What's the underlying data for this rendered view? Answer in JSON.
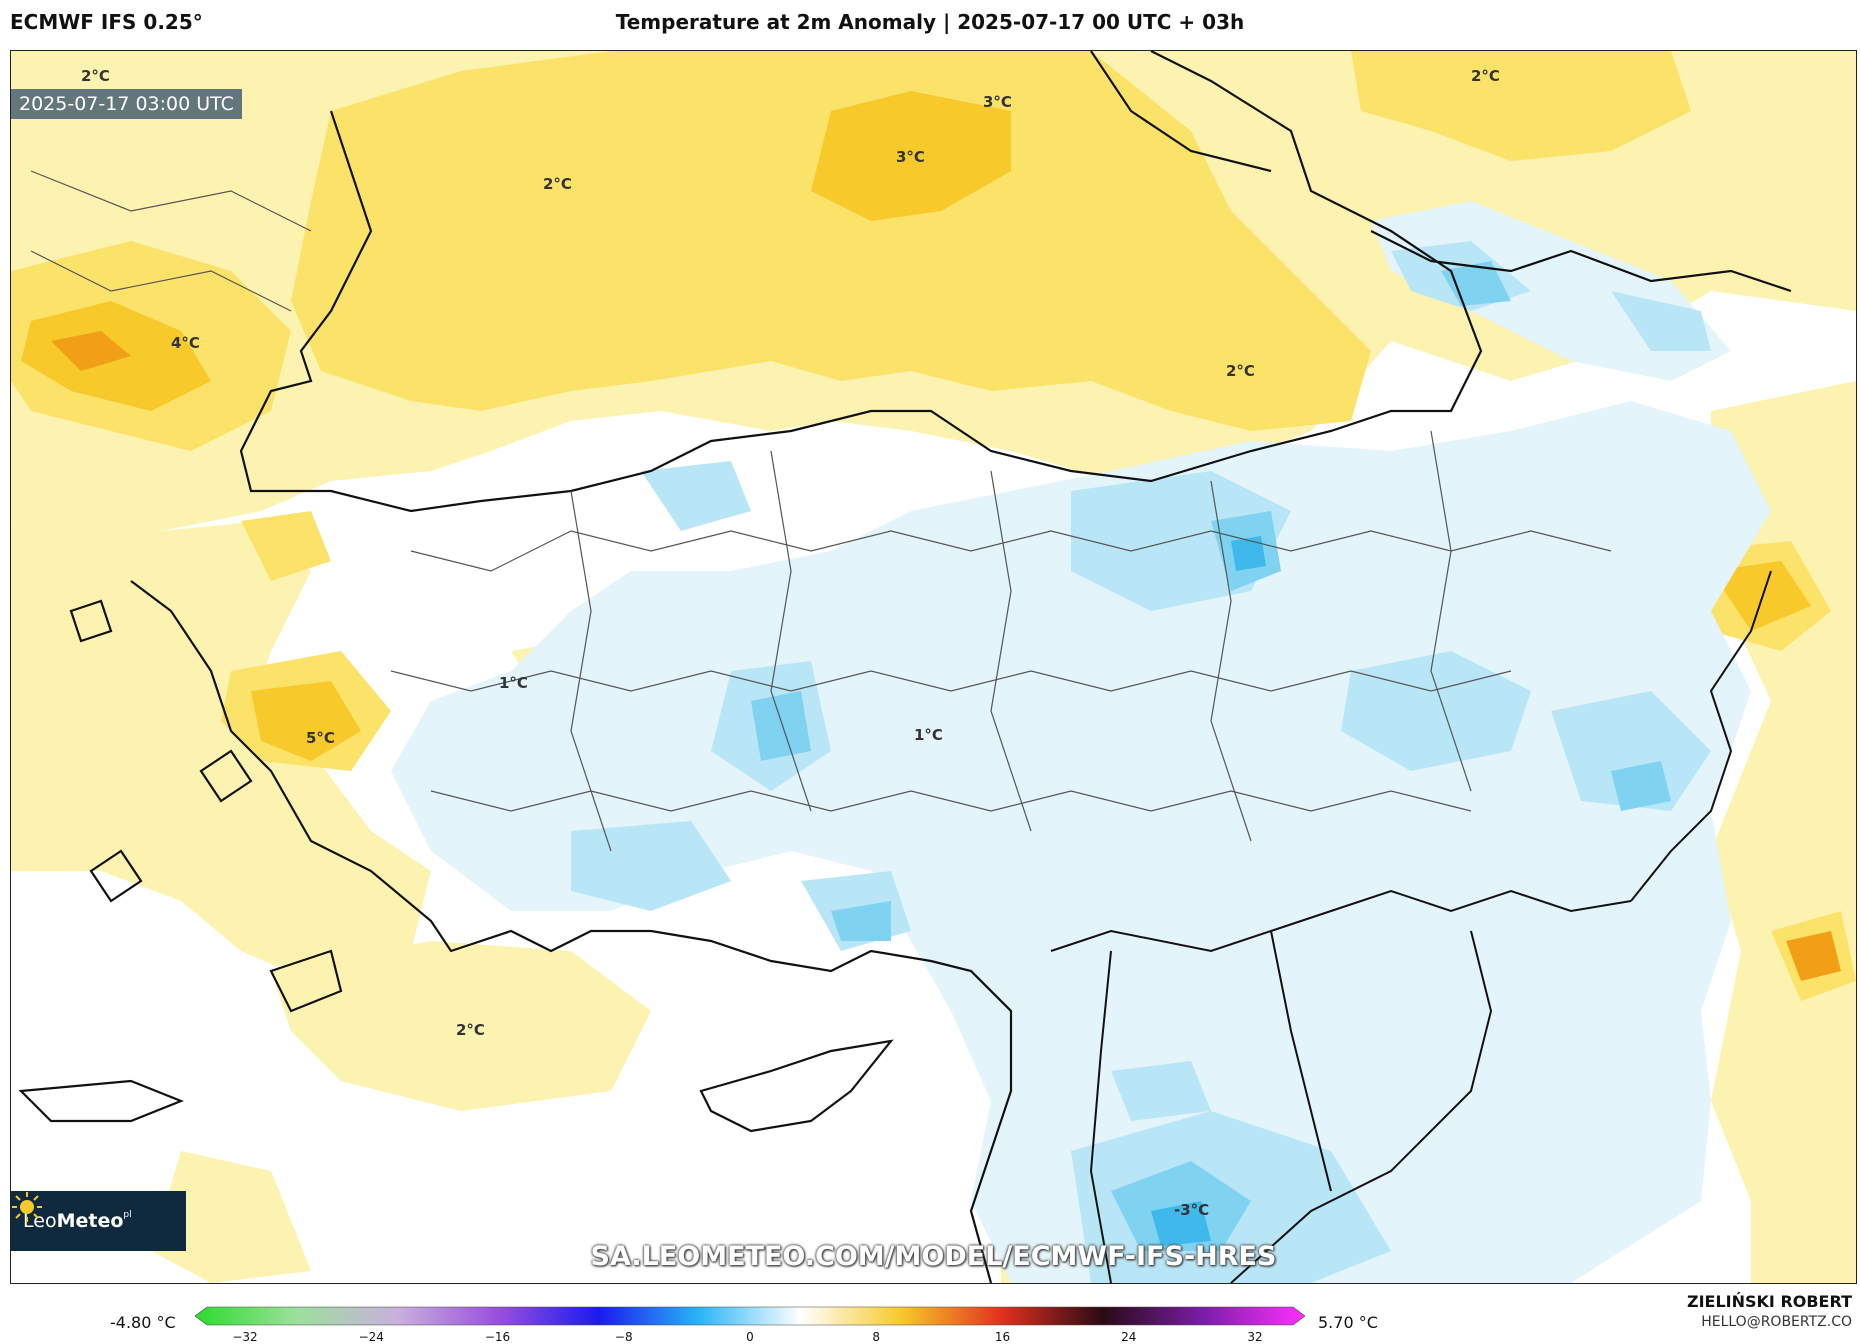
{
  "header": {
    "model": "ECMWF IFS 0.25°",
    "title": "Temperature at 2m Anomaly | 2025-07-17 00 UTC + 03h"
  },
  "map": {
    "valid_time": "2025-07-17 03:00 UTC",
    "contour_labels": [
      "2°C",
      "3°C",
      "3°C",
      "2°C",
      "2°C",
      "4°C",
      "2°C",
      "1°C",
      "5°C",
      "1°C",
      "2°C",
      "-3°C"
    ],
    "watermark": "SA.LEOMETEO.COM/MODEL/ECMWF-IFS-HRES",
    "colors": {
      "warm_light": "#fdf3b0",
      "warm": "#fbe269",
      "warm_strong": "#f7c92a",
      "hot": "#f29f18",
      "cool_light": "#e3f4fb",
      "cool": "#b9e6f6",
      "cool_strong": "#7fd3f0",
      "cold": "#3fb9eb"
    }
  },
  "logo": {
    "icon": "sun-icon",
    "name_light": "Leo",
    "name_bold": "Meteo",
    "suffix": "pl"
  },
  "legend": {
    "min_label": "-4.80 °C",
    "max_label": "5.70 °C",
    "ticks": [
      "−32",
      "−24",
      "−16",
      "−8",
      "0",
      "8",
      "16",
      "24",
      "32"
    ],
    "colors": [
      "#2bdc2b",
      "#9be09b",
      "#c9b0dd",
      "#9a4fdd",
      "#1a1aef",
      "#29b6f6",
      "#ffffff",
      "#f7c92a",
      "#e0301e",
      "#2a0a14",
      "#7a1ea8",
      "#ff30ff"
    ]
  },
  "credit": {
    "author": "ZIELIŃSKI ROBERT",
    "email": "HELLO@ROBERTZ.CO"
  }
}
